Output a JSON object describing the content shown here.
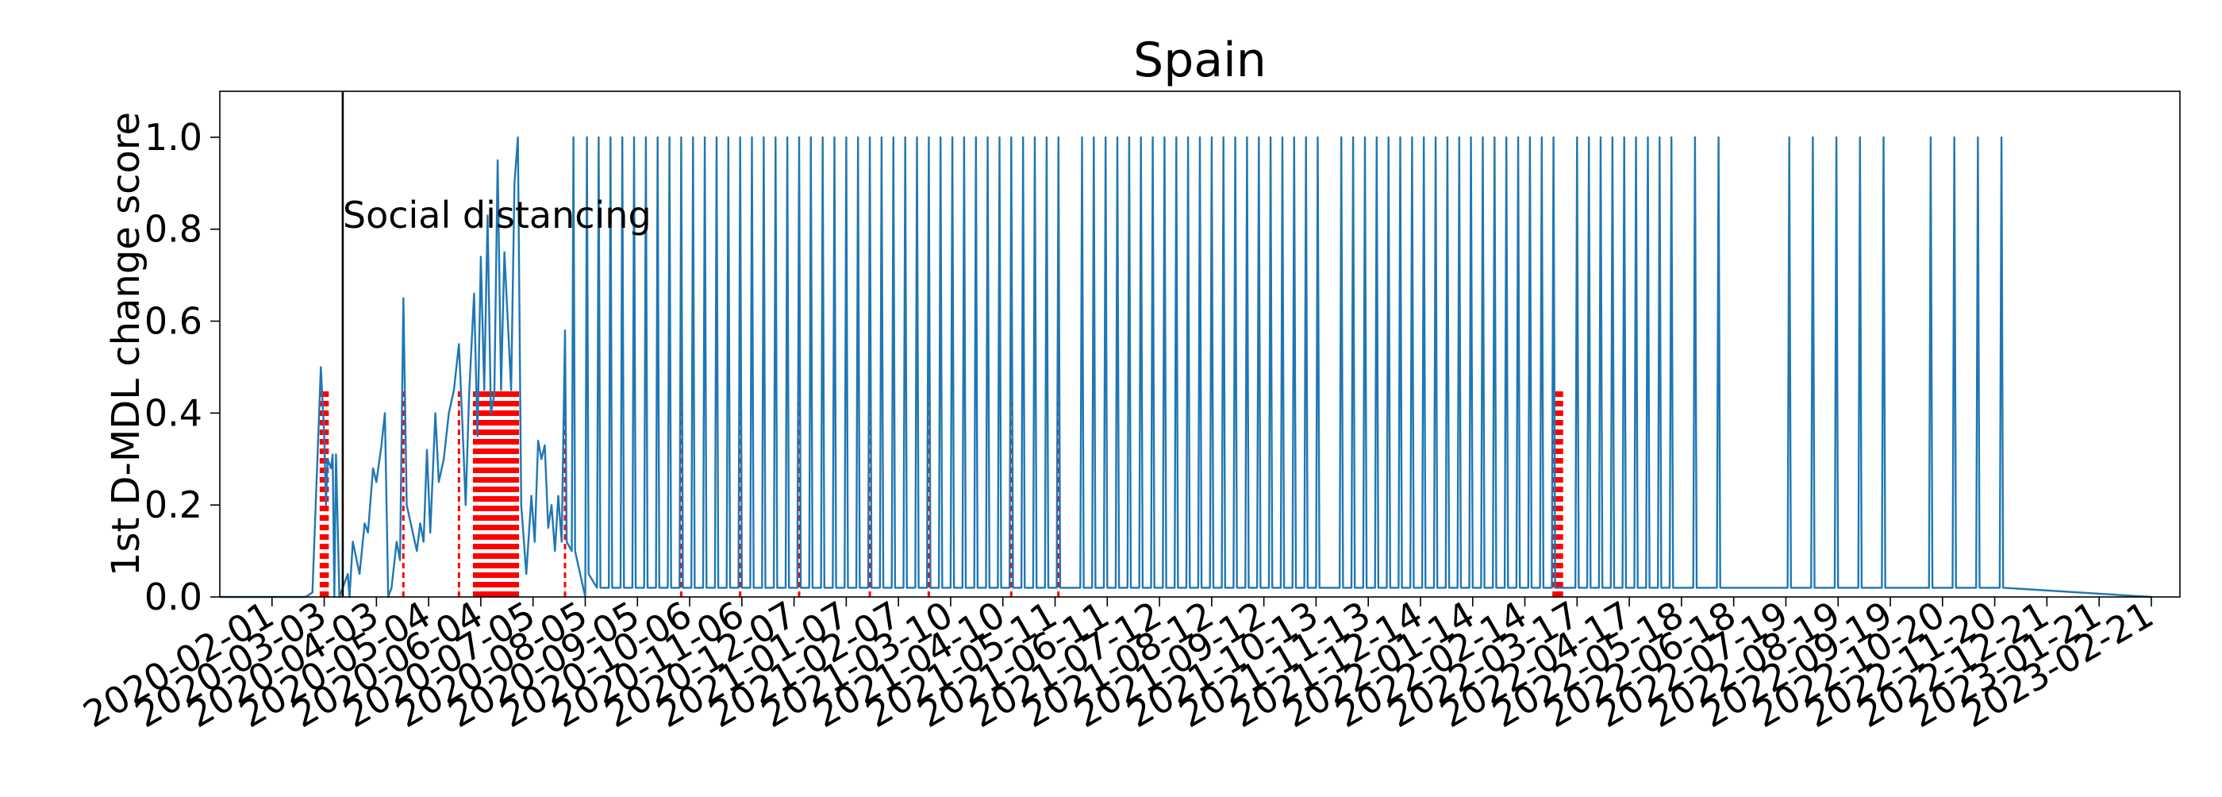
{
  "chart_data": {
    "type": "line",
    "title": "Spain",
    "xlabel": "",
    "ylabel": "1st D-MDL change score",
    "xlim": [
      "2020-01-01",
      "2023-03-10"
    ],
    "ylim": [
      0,
      1.1
    ],
    "y_ticks": [
      0.0,
      0.2,
      0.4,
      0.6,
      0.8,
      1.0
    ],
    "y_tick_labels": [
      "0.0",
      "0.2",
      "0.4",
      "0.6",
      "0.8",
      "1.0"
    ],
    "x_tick_labels": [
      "2020-02-01",
      "2020-03-03",
      "2020-04-03",
      "2020-05-04",
      "2020-06-04",
      "2020-07-05",
      "2020-08-05",
      "2020-09-05",
      "2020-10-06",
      "2020-11-06",
      "2020-12-07",
      "2021-01-07",
      "2021-02-07",
      "2021-03-10",
      "2021-04-10",
      "2021-05-11",
      "2021-06-11",
      "2021-07-12",
      "2021-08-12",
      "2021-09-12",
      "2021-10-13",
      "2021-11-13",
      "2021-12-14",
      "2022-01-14",
      "2022-02-14",
      "2022-03-17",
      "2022-04-17",
      "2022-05-18",
      "2022-06-18",
      "2022-07-19",
      "2022-08-19",
      "2022-09-19",
      "2022-10-20",
      "2022-11-20",
      "2022-12-21",
      "2023-01-21",
      "2023-02-21"
    ],
    "annotation": {
      "date": "2020-03-14",
      "label": "Social distancing"
    },
    "series": [
      {
        "color": "#1f77b4",
        "points": [
          [
            "2020-01-01",
            0.0
          ],
          [
            "2020-01-21",
            0.0
          ],
          [
            "2020-02-21",
            0.0
          ],
          [
            "2020-02-25",
            0.01
          ],
          [
            "2020-03-01",
            0.5
          ],
          [
            "2020-03-03",
            0.35
          ],
          [
            "2020-03-04",
            0.2
          ],
          [
            "2020-03-05",
            0.3
          ],
          [
            "2020-03-07",
            0.28
          ],
          [
            "2020-03-08",
            0.31
          ],
          [
            "2020-03-09",
            0.0
          ],
          [
            "2020-03-10",
            0.31
          ],
          [
            "2020-03-12",
            0.0
          ],
          [
            "2020-03-17",
            0.05
          ],
          [
            "2020-03-18",
            0.0
          ],
          [
            "2020-03-20",
            0.12
          ],
          [
            "2020-03-24",
            0.05
          ],
          [
            "2020-03-27",
            0.16
          ],
          [
            "2020-03-29",
            0.14
          ],
          [
            "2020-04-01",
            0.28
          ],
          [
            "2020-04-03",
            0.25
          ],
          [
            "2020-04-06",
            0.33
          ],
          [
            "2020-04-08",
            0.4
          ],
          [
            "2020-04-10",
            0.0
          ],
          [
            "2020-04-12",
            0.02
          ],
          [
            "2020-04-15",
            0.12
          ],
          [
            "2020-04-17",
            0.08
          ],
          [
            "2020-04-19",
            0.65
          ],
          [
            "2020-04-21",
            0.2
          ],
          [
            "2020-04-24",
            0.15
          ],
          [
            "2020-04-27",
            0.1
          ],
          [
            "2020-04-29",
            0.16
          ],
          [
            "2020-05-01",
            0.12
          ],
          [
            "2020-05-03",
            0.32
          ],
          [
            "2020-05-05",
            0.14
          ],
          [
            "2020-05-08",
            0.4
          ],
          [
            "2020-05-10",
            0.25
          ],
          [
            "2020-05-13",
            0.3
          ],
          [
            "2020-05-16",
            0.4
          ],
          [
            "2020-05-19",
            0.45
          ],
          [
            "2020-05-22",
            0.55
          ],
          [
            "2020-05-24",
            0.38
          ],
          [
            "2020-05-26",
            0.2
          ],
          [
            "2020-05-28",
            0.44
          ],
          [
            "2020-05-31",
            0.66
          ],
          [
            "2020-06-02",
            0.35
          ],
          [
            "2020-06-04",
            0.74
          ],
          [
            "2020-06-06",
            0.45
          ],
          [
            "2020-06-08",
            0.83
          ],
          [
            "2020-06-10",
            0.4
          ],
          [
            "2020-06-12",
            0.44
          ],
          [
            "2020-06-14",
            0.95
          ],
          [
            "2020-06-16",
            0.45
          ],
          [
            "2020-06-18",
            0.75
          ],
          [
            "2020-06-20",
            0.6
          ],
          [
            "2020-06-22",
            0.45
          ],
          [
            "2020-06-24",
            0.9
          ],
          [
            "2020-06-26",
            1.0
          ],
          [
            "2020-06-28",
            0.2
          ],
          [
            "2020-07-01",
            0.05
          ],
          [
            "2020-07-04",
            0.22
          ],
          [
            "2020-07-06",
            0.12
          ],
          [
            "2020-07-08",
            0.34
          ],
          [
            "2020-07-10",
            0.3
          ],
          [
            "2020-07-12",
            0.33
          ],
          [
            "2020-07-14",
            0.15
          ],
          [
            "2020-07-16",
            0.2
          ],
          [
            "2020-07-18",
            0.1
          ],
          [
            "2020-07-20",
            0.22
          ],
          [
            "2020-07-22",
            0.12
          ],
          [
            "2020-07-24",
            0.58
          ],
          [
            "2020-07-25",
            0.12
          ],
          [
            "2020-07-28",
            0.1
          ],
          [
            "2020-07-29",
            1.0
          ],
          [
            "2020-07-30",
            0.1
          ],
          [
            "2020-08-05",
            0.0
          ],
          [
            "2020-08-06",
            1.0
          ],
          [
            "2020-08-07",
            0.05
          ]
        ],
        "spike_dates": [
          "2020-08-13",
          "2020-08-20",
          "2020-08-27",
          "2020-09-03",
          "2020-09-10",
          "2020-09-17",
          "2020-09-24",
          "2020-10-01",
          "2020-10-08",
          "2020-10-15",
          "2020-10-22",
          "2020-10-29",
          "2020-11-05",
          "2020-11-12",
          "2020-11-19",
          "2020-11-26",
          "2020-12-03",
          "2020-12-10",
          "2020-12-17",
          "2020-12-24",
          "2020-12-31",
          "2021-01-07",
          "2021-01-14",
          "2021-01-21",
          "2021-01-28",
          "2021-02-04",
          "2021-02-11",
          "2021-02-18",
          "2021-02-25",
          "2021-03-04",
          "2021-03-11",
          "2021-03-18",
          "2021-03-25",
          "2021-04-01",
          "2021-04-08",
          "2021-04-15",
          "2021-04-22",
          "2021-04-29",
          "2021-05-06",
          "2021-05-13",
          "2021-05-27",
          "2021-06-03",
          "2021-06-10",
          "2021-06-17",
          "2021-06-24",
          "2021-07-01",
          "2021-07-08",
          "2021-07-15",
          "2021-07-22",
          "2021-07-29",
          "2021-08-05",
          "2021-08-12",
          "2021-08-19",
          "2021-08-26",
          "2021-09-02",
          "2021-09-09",
          "2021-09-16",
          "2021-09-23",
          "2021-09-30",
          "2021-10-07",
          "2021-10-14",
          "2021-10-28",
          "2021-11-04",
          "2021-11-11",
          "2021-11-18",
          "2021-11-25",
          "2021-12-02",
          "2021-12-09",
          "2021-12-16",
          "2021-12-23",
          "2021-12-30",
          "2022-01-06",
          "2022-01-13",
          "2022-01-20",
          "2022-01-27",
          "2022-02-03",
          "2022-02-10",
          "2022-02-17",
          "2022-02-24",
          "2022-03-03",
          "2022-03-17",
          "2022-03-24",
          "2022-03-31",
          "2022-04-07",
          "2022-04-14",
          "2022-04-21",
          "2022-04-28",
          "2022-05-05",
          "2022-05-12",
          "2022-05-26",
          "2022-06-09",
          "2022-07-21",
          "2022-08-04",
          "2022-08-18",
          "2022-09-01",
          "2022-09-15",
          "2022-10-13",
          "2022-10-27",
          "2022-11-10",
          "2022-11-24"
        ],
        "flat_until": "2023-02-21"
      }
    ],
    "marked_change_dates": [
      "2020-03-01",
      "2020-03-02",
      "2020-03-03",
      "2020-03-04",
      "2020-03-05",
      "2020-04-19",
      "2020-05-22",
      "2020-05-31",
      "2020-06-01",
      "2020-06-02",
      "2020-06-03",
      "2020-06-04",
      "2020-06-05",
      "2020-06-06",
      "2020-06-07",
      "2020-06-08",
      "2020-06-09",
      "2020-06-10",
      "2020-06-11",
      "2020-06-12",
      "2020-06-13",
      "2020-06-14",
      "2020-06-15",
      "2020-06-16",
      "2020-06-17",
      "2020-06-18",
      "2020-06-19",
      "2020-06-20",
      "2020-06-21",
      "2020-06-22",
      "2020-06-23",
      "2020-06-24",
      "2020-06-25",
      "2020-06-26",
      "2020-07-24",
      "2020-10-01",
      "2020-11-05",
      "2020-12-10",
      "2021-01-21",
      "2021-02-25",
      "2021-04-15",
      "2021-05-13",
      "2022-03-03",
      "2022-03-04",
      "2022-03-05",
      "2022-03-06",
      "2022-03-07",
      "2022-03-08"
    ]
  }
}
